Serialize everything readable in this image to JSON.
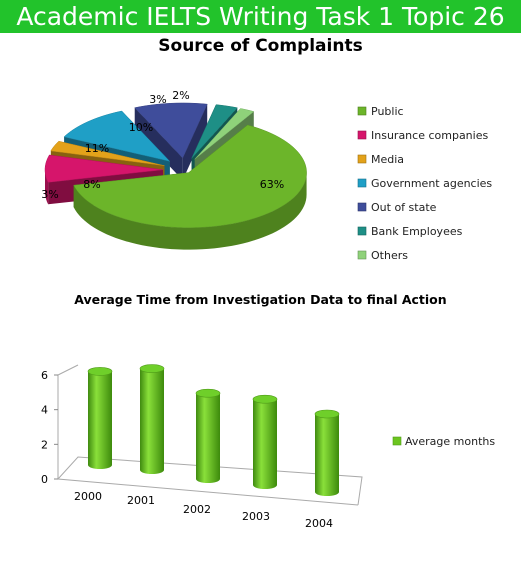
{
  "banner": {
    "title": "Academic IELTS Writing Task 1 Topic 26"
  },
  "chart_data": [
    {
      "type": "pie",
      "title": "Source of Complaints",
      "categories": [
        "Public",
        "Insurance companies",
        "Media",
        "Government agencies",
        "Out of state",
        "Bank Employees",
        "Others"
      ],
      "values": [
        63,
        8,
        3,
        11,
        10,
        3,
        2
      ],
      "labels": [
        "63%",
        "8%",
        "3%",
        "11%",
        "10%",
        "3%",
        "2%"
      ],
      "colors": [
        "#6cb52a",
        "#d6156b",
        "#e3a21a",
        "#1f9fc6",
        "#3f4d9b",
        "#1e8f86",
        "#8fd27a"
      ],
      "legend_position": "right",
      "three_d": true,
      "exploded": true
    },
    {
      "type": "bar",
      "title": "Average Time from Investigation Data to final Action",
      "categories": [
        "2000",
        "2001",
        "2002",
        "2003",
        "2004"
      ],
      "series": [
        {
          "name": "Average months",
          "values": [
            6,
            6.5,
            5.5,
            5.5,
            5
          ]
        }
      ],
      "ylim": [
        0,
        6
      ],
      "yticks": [
        "0",
        "2",
        "4",
        "6"
      ],
      "bar_shape": "cylinder",
      "color": "#6cc51f",
      "legend_position": "right",
      "grid": false
    }
  ]
}
